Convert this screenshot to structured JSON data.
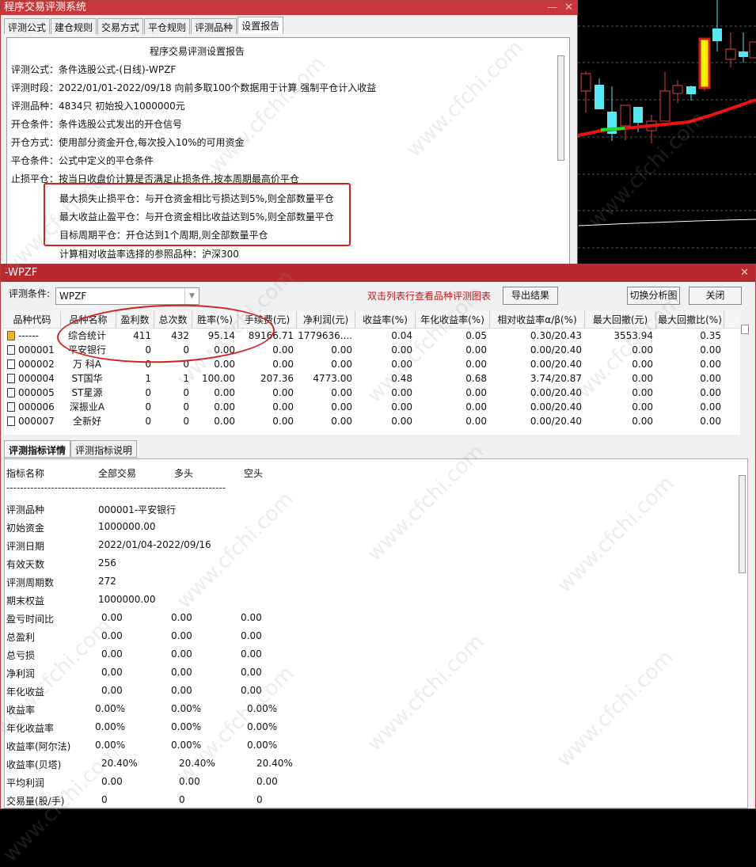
{
  "setup_window": {
    "title": "程序交易评测系统",
    "tabs": [
      "评测公式",
      "建仓规则",
      "交易方式",
      "平仓规则",
      "评测品种",
      "设置报告"
    ],
    "active_tab": "设置报告",
    "report": {
      "title": "程序交易评测设置报告",
      "lines": [
        "评测公式：条件选股公式-(日线)-WPZF",
        "评测时段：2022/01/01-2022/09/18 向前多取100个数据用于计算 强制平仓计入收益",
        "评测品种：4834只 初始投入1000000元",
        "开仓条件：条件选股公式发出的开仓信号",
        "开仓方式：使用部分资金开仓,每次投入10%的可用资金",
        "平仓条件：公式中定义的平仓条件",
        "止损平仓：按当日收盘价计算是否满足止损条件,按本周期最高价平仓"
      ],
      "highlighted_lines": [
        "最大损失止损平仓：与开仓资金相比亏损达到5%,则全部数量平仓",
        "最大收益止盈平仓：与开仓资金相比收益达到5%,则全部数量平仓",
        "目标周期平仓：开仓达到1个周期,则全部数量平仓"
      ],
      "reference_line": "计算相对收益率选择的参照品种：沪深300"
    }
  },
  "result_window": {
    "title": "-WPZF",
    "condition_label": "评测条件:",
    "condition_value": "WPZF",
    "hint": "双击列表行查看品种评测图表",
    "export_button": "导出结果",
    "switch_button": "切换分析图",
    "close_button": "关闭",
    "columns": [
      "品种代码",
      "品种名称",
      "盈利数",
      "总次数",
      "胜率(%)",
      "手续费(元)",
      "净利润(元)",
      "收益率(%)",
      "年化收益率(%)",
      "相对收益率α/β(%)",
      "最大回撤(元)",
      "最大回撤比(%)"
    ],
    "rows": [
      [
        "------",
        "综合统计",
        "411",
        "432",
        "95.14",
        "89166.71",
        "1779636....",
        "0.04",
        "0.05",
        "0.30/20.43",
        "3553.94",
        "0.35"
      ],
      [
        "000001",
        "平安银行",
        "0",
        "0",
        "0.00",
        "0.00",
        "0.00",
        "0.00",
        "0.00",
        "0.00/20.40",
        "0.00",
        "0.00"
      ],
      [
        "000002",
        "万 科A",
        "0",
        "0",
        "0.00",
        "0.00",
        "0.00",
        "0.00",
        "0.00",
        "0.00/20.40",
        "0.00",
        "0.00"
      ],
      [
        "000004",
        "ST国华",
        "1",
        "1",
        "100.00",
        "207.36",
        "4773.00",
        "0.48",
        "0.68",
        "3.74/20.87",
        "0.00",
        "0.00"
      ],
      [
        "000005",
        "ST星源",
        "0",
        "0",
        "0.00",
        "0.00",
        "0.00",
        "0.00",
        "0.00",
        "0.00/20.40",
        "0.00",
        "0.00"
      ],
      [
        "000006",
        "深振业A",
        "0",
        "0",
        "0.00",
        "0.00",
        "0.00",
        "0.00",
        "0.00",
        "0.00/20.40",
        "0.00",
        "0.00"
      ],
      [
        "000007",
        "全新好",
        "0",
        "0",
        "0.00",
        "0.00",
        "0.00",
        "0.00",
        "0.00",
        "0.00/20.40",
        "0.00",
        "0.00"
      ]
    ],
    "bottom_tabs": [
      "评测指标详情",
      "评测指标说明"
    ],
    "details": {
      "headers": [
        "指标名称",
        "全部交易",
        "多头",
        "空头"
      ],
      "separator": "----------------------------------------------------------------",
      "rows": [
        [
          "评测品种",
          "000001-平安银行"
        ],
        [
          "初始资金",
          "1000000.00"
        ],
        [
          "评测日期",
          "2022/01/04-2022/09/16"
        ],
        [
          "有效天数",
          "256"
        ],
        [
          "评测周期数",
          "272"
        ],
        [
          "期末权益",
          "1000000.00"
        ],
        [
          "盈亏时间比",
          "0.00",
          "0.00",
          "0.00"
        ],
        [
          "总盈利",
          "0.00",
          "0.00",
          "0.00"
        ],
        [
          "总亏损",
          "0.00",
          "0.00",
          "0.00"
        ],
        [
          "净利润",
          "0.00",
          "0.00",
          "0.00"
        ],
        [
          "年化收益",
          "0.00",
          "0.00",
          "0.00"
        ],
        [
          "收益率",
          "0.00%",
          "0.00%",
          "0.00%"
        ],
        [
          "年化收益率",
          "0.00%",
          "0.00%",
          "0.00%"
        ],
        [
          "收益率(阿尔法)",
          "0.00%",
          "0.00%",
          "0.00%"
        ],
        [
          "收益率(贝塔)",
          "20.40%",
          "20.40%",
          "20.40%"
        ],
        [
          "平均利润",
          "0.00",
          "0.00",
          "0.00"
        ],
        [
          "交易量(股/手)",
          "0",
          "0",
          "0"
        ]
      ]
    }
  },
  "watermark": "www.cfchi.com",
  "colors": {
    "title_bar": "#c8383b",
    "highlight_red": "#d32222",
    "up_candle": "#e04040",
    "down_candle": "#55e8f0",
    "ma_line": "#ee1111"
  }
}
